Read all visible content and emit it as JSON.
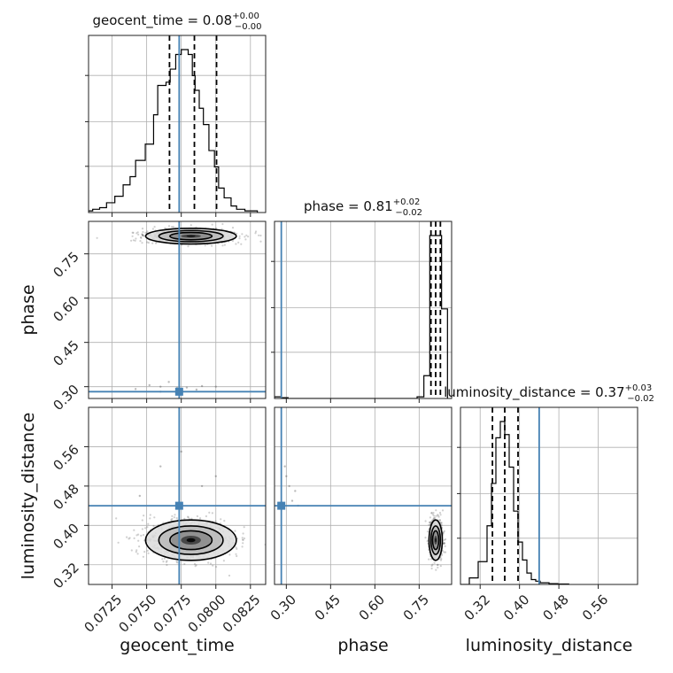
{
  "chart_data": {
    "type": "corner",
    "parameters": [
      {
        "name": "geocent_time",
        "title_name": "geocent_time",
        "title_value": "0.08",
        "title_plus": "+0.00",
        "title_minus": "−0.00",
        "range": [
          0.0708,
          0.0836
        ],
        "ticks": [
          0.0725,
          0.075,
          0.0775,
          0.08,
          0.0825
        ],
        "tick_labels": [
          "0.0725",
          "0.0750",
          "0.0775",
          "0.0800",
          "0.0825"
        ],
        "truth": 0.07735,
        "quantiles": [
          0.07665,
          0.07845,
          0.08005
        ],
        "hist_bins": [
          0.0708,
          0.0711,
          0.0716,
          0.0721,
          0.0727,
          0.0733,
          0.0738,
          0.0742,
          0.0749,
          0.0755,
          0.0758,
          0.0764,
          0.0767,
          0.0771,
          0.0775,
          0.078,
          0.0783,
          0.0785,
          0.0788,
          0.0791,
          0.0795,
          0.0799,
          0.0802,
          0.0806,
          0.0811,
          0.0815,
          0.0821,
          0.0825,
          0.083
        ],
        "hist_counts": [
          1,
          2,
          3,
          6,
          10,
          17,
          22,
          32,
          42,
          60,
          78,
          80,
          88,
          97,
          100,
          97,
          84,
          75,
          64,
          54,
          38,
          28,
          15,
          9,
          4,
          2,
          1,
          1
        ]
      },
      {
        "name": "phase",
        "title_name": "phase",
        "title_value": "0.81",
        "title_plus": "+0.02",
        "title_minus": "−0.02",
        "range": [
          0.26,
          0.86
        ],
        "ticks": [
          0.3,
          0.45,
          0.6,
          0.75
        ],
        "tick_labels": [
          "0.30",
          "0.45",
          "0.60",
          "0.75"
        ],
        "truth": 0.283,
        "quantiles": [
          0.79,
          0.806,
          0.822
        ],
        "hist_bins": [
          0.26,
          0.283,
          0.306,
          0.329,
          0.352,
          0.375,
          0.398,
          0.421,
          0.444,
          0.467,
          0.49,
          0.513,
          0.536,
          0.559,
          0.582,
          0.605,
          0.628,
          0.651,
          0.674,
          0.697,
          0.72,
          0.743,
          0.766,
          0.786,
          0.806,
          0.826,
          0.846
        ],
        "hist_counts": [
          1,
          0.5,
          0,
          0,
          0,
          0,
          0,
          0,
          0,
          0,
          0,
          0,
          0,
          0,
          0,
          0,
          0,
          0,
          0,
          0,
          0,
          1,
          14,
          100,
          100,
          55
        ]
      },
      {
        "name": "luminosity_distance",
        "title_name": "luminosity_distance",
        "title_value": "0.37",
        "title_plus": "+0.03",
        "title_minus": "−0.02",
        "range": [
          0.28,
          0.64
        ],
        "ticks": [
          0.32,
          0.4,
          0.48,
          0.56
        ],
        "tick_labels": [
          "0.32",
          "0.40",
          "0.48",
          "0.56"
        ],
        "truth": 0.44,
        "quantiles": [
          0.345,
          0.37,
          0.397
        ],
        "hist_bins": [
          0.28,
          0.298,
          0.316,
          0.334,
          0.343,
          0.352,
          0.361,
          0.37,
          0.379,
          0.388,
          0.397,
          0.406,
          0.415,
          0.424,
          0.433,
          0.442,
          0.451,
          0.46,
          0.478,
          0.5
        ],
        "hist_counts": [
          0,
          4,
          14,
          36,
          62,
          90,
          100,
          92,
          72,
          45,
          26,
          15,
          7,
          3,
          2,
          1,
          1,
          0.5,
          0.3
        ]
      }
    ],
    "scatter": {
      "1_0": {
        "center": [
          0.0782,
          0.81
        ],
        "spread": [
          0.0016,
          0.013
        ],
        "outliers": [
          [
            0.0742,
            0.292
          ],
          [
            0.0752,
            0.305
          ],
          [
            0.076,
            0.3
          ],
          [
            0.0766,
            0.316
          ],
          [
            0.0772,
            0.296
          ],
          [
            0.0779,
            0.297
          ],
          [
            0.079,
            0.302
          ],
          [
            0.08,
            0.3
          ],
          [
            0.076,
            0.283
          ],
          [
            0.0786,
            0.29
          ]
        ]
      },
      "2_0": {
        "center": [
          0.0782,
          0.37
        ],
        "spread": [
          0.0016,
          0.02
        ],
        "outliers": [
          [
            0.076,
            0.52
          ],
          [
            0.08,
            0.5
          ],
          [
            0.0775,
            0.55
          ],
          [
            0.079,
            0.48
          ],
          [
            0.0745,
            0.46
          ]
        ]
      },
      "2_1": {
        "center": [
          0.806,
          0.37
        ],
        "spread": [
          0.011,
          0.02
        ],
        "outliers": [
          [
            0.3,
            0.5
          ],
          [
            0.31,
            0.48
          ],
          [
            0.32,
            0.45
          ],
          [
            0.295,
            0.52
          ],
          [
            0.33,
            0.47
          ],
          [
            0.34,
            0.44
          ]
        ]
      }
    },
    "truth_color": "#4682b4",
    "line_color": "#000000",
    "grid": true
  }
}
